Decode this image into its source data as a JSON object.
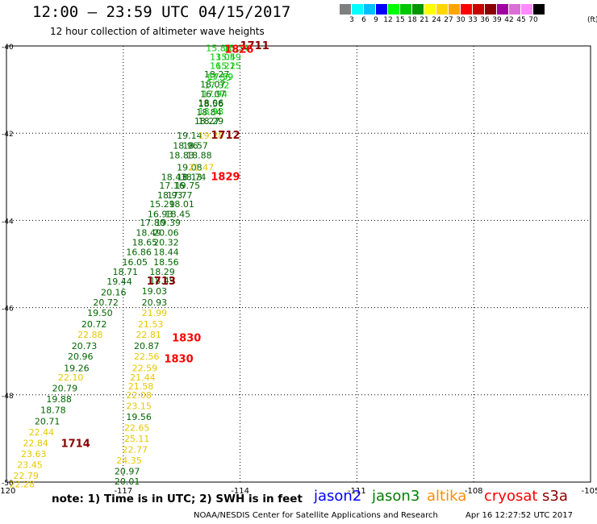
{
  "header": {
    "title": "12:00 – 23:59 UTC 04/15/2017",
    "subtitle": "12 hour collection of altimeter wave heights"
  },
  "scale": {
    "labels": [
      "3",
      "6",
      "9",
      "12",
      "15",
      "18",
      "21",
      "24",
      "27",
      "30",
      "33",
      "36",
      "39",
      "42",
      "45",
      "70"
    ],
    "unit": "(ft)",
    "colors": [
      "#7f7f7f",
      "#00ffff",
      "#00bfff",
      "#0000ff",
      "#00ff00",
      "#00c800",
      "#009600",
      "#ffff00",
      "#ffd700",
      "#ffa500",
      "#ff0000",
      "#c80000",
      "#8b0000",
      "#a000a0",
      "#da70d6",
      "#ff8cff",
      "#000000"
    ]
  },
  "footer": {
    "note": "note:  1) Time is in UTC;  2) SWH is in feet",
    "credit": "NOAA/NESDIS Center for Satellite Applications and Research",
    "timestamp": "Apr 16 12:27:52 UTC 2017"
  },
  "legend": [
    {
      "name": "jason2",
      "color": "#0000ff"
    },
    {
      "name": "jason3",
      "color": "#008000"
    },
    {
      "name": "altika",
      "color": "#ff8c00"
    },
    {
      "name": "cryosat",
      "color": "#ff0000"
    },
    {
      "name": "s3a",
      "color": "#8b0000"
    }
  ],
  "chart_data": {
    "type": "scatter",
    "title": "",
    "xlabel": "",
    "ylabel": "",
    "xlim": [
      -120,
      -105
    ],
    "ylim": [
      -50,
      -40
    ],
    "x_ticks": [
      -120,
      -117,
      -114,
      -111,
      -108,
      -105
    ],
    "x_tick_labels": [
      "-120",
      "-117",
      "-114",
      "-111",
      "-108",
      "-105"
    ],
    "y_ticks": [
      -40,
      -42,
      -44,
      -46,
      -48,
      -50
    ],
    "y_tick_labels": [
      "-40",
      "-42",
      "-44",
      "-46",
      "-48",
      "-50"
    ],
    "grid": true,
    "colors": {
      "green": "#006400",
      "light_green": "#00c800",
      "yellow": "#e6c800",
      "red": "#ff0000",
      "dark_red": "#8b0000"
    },
    "points": [
      {
        "x": -114.55,
        "y": -40.05,
        "text": "15.88",
        "color": "light_green"
      },
      {
        "x": -114.1,
        "y": -40.05,
        "text": "15.34",
        "color": "light_green"
      },
      {
        "x": -114.45,
        "y": -40.25,
        "text": "13.05",
        "color": "light_green"
      },
      {
        "x": -114.3,
        "y": -40.25,
        "text": "15.49",
        "color": "light_green"
      },
      {
        "x": -114.45,
        "y": -40.45,
        "text": "16.21",
        "color": "light_green"
      },
      {
        "x": -114.3,
        "y": -40.45,
        "text": "15.25",
        "color": "light_green"
      },
      {
        "x": -114.6,
        "y": -40.65,
        "text": "18.27",
        "color": "green"
      },
      {
        "x": -114.55,
        "y": -40.72,
        "text": "17.55",
        "color": "light_green"
      },
      {
        "x": -114.5,
        "y": -40.7,
        "text": "17.59",
        "color": "light_green"
      },
      {
        "x": -114.6,
        "y": -40.9,
        "text": "17.32",
        "color": "light_green"
      },
      {
        "x": -114.7,
        "y": -40.88,
        "text": "18.07",
        "color": "green"
      },
      {
        "x": -114.65,
        "y": -41.1,
        "text": "17.94",
        "color": "light_green"
      },
      {
        "x": -114.7,
        "y": -41.1,
        "text": "16.07",
        "color": "green"
      },
      {
        "x": -114.75,
        "y": -41.3,
        "text": "18.06",
        "color": "green"
      },
      {
        "x": -114.75,
        "y": -41.32,
        "text": "18.56",
        "color": "green"
      },
      {
        "x": -114.8,
        "y": -41.52,
        "text": "18.84",
        "color": "green"
      },
      {
        "x": -114.75,
        "y": -41.5,
        "text": "18.93",
        "color": "light_green"
      },
      {
        "x": -114.85,
        "y": -41.72,
        "text": "18.27",
        "color": "green"
      },
      {
        "x": -114.75,
        "y": -41.72,
        "text": "18.29",
        "color": "green"
      },
      {
        "x": -115.3,
        "y": -42.05,
        "text": "19.14",
        "color": "green"
      },
      {
        "x": -114.75,
        "y": -42.05,
        "text": "19.28",
        "color": "yellow"
      },
      {
        "x": -115.4,
        "y": -42.28,
        "text": "18.96",
        "color": "green"
      },
      {
        "x": -115.15,
        "y": -42.28,
        "text": "18.57",
        "color": "green"
      },
      {
        "x": -115.5,
        "y": -42.5,
        "text": "18.83",
        "color": "green"
      },
      {
        "x": -115.05,
        "y": -42.5,
        "text": "18.88",
        "color": "green"
      },
      {
        "x": -115.3,
        "y": -42.78,
        "text": "19.08",
        "color": "green"
      },
      {
        "x": -115.0,
        "y": -42.78,
        "text": "21.47",
        "color": "yellow"
      },
      {
        "x": -115.7,
        "y": -43.0,
        "text": "18.43",
        "color": "green"
      },
      {
        "x": -115.3,
        "y": -43.0,
        "text": "18.13",
        "color": "green"
      },
      {
        "x": -115.2,
        "y": -43.0,
        "text": "18.74",
        "color": "green"
      },
      {
        "x": -115.75,
        "y": -43.2,
        "text": "17.16",
        "color": "green"
      },
      {
        "x": -115.35,
        "y": -43.2,
        "text": "19.75",
        "color": "green"
      },
      {
        "x": -115.8,
        "y": -43.42,
        "text": "18.93",
        "color": "green"
      },
      {
        "x": -115.55,
        "y": -43.42,
        "text": "17.77",
        "color": "green"
      },
      {
        "x": -116.0,
        "y": -43.62,
        "text": "15.29",
        "color": "green"
      },
      {
        "x": -115.5,
        "y": -43.62,
        "text": "18.01",
        "color": "green"
      },
      {
        "x": -116.05,
        "y": -43.85,
        "text": "16.93",
        "color": "green"
      },
      {
        "x": -115.6,
        "y": -43.85,
        "text": "18.45",
        "color": "green"
      },
      {
        "x": -116.25,
        "y": -44.05,
        "text": "17.80",
        "color": "green"
      },
      {
        "x": -115.85,
        "y": -44.05,
        "text": "19.39",
        "color": "green"
      },
      {
        "x": -116.35,
        "y": -44.28,
        "text": "18.49",
        "color": "green"
      },
      {
        "x": -115.9,
        "y": -44.28,
        "text": "20.06",
        "color": "green"
      },
      {
        "x": -116.45,
        "y": -44.5,
        "text": "18.65",
        "color": "green"
      },
      {
        "x": -115.9,
        "y": -44.5,
        "text": "20.32",
        "color": "green"
      },
      {
        "x": -116.6,
        "y": -44.72,
        "text": "16.86",
        "color": "green"
      },
      {
        "x": -115.9,
        "y": -44.72,
        "text": "18.44",
        "color": "green"
      },
      {
        "x": -116.7,
        "y": -44.95,
        "text": "16.05",
        "color": "green"
      },
      {
        "x": -115.9,
        "y": -44.95,
        "text": "18.56",
        "color": "green"
      },
      {
        "x": -116.95,
        "y": -45.18,
        "text": "18.71",
        "color": "green"
      },
      {
        "x": -116.0,
        "y": -45.18,
        "text": "18.29",
        "color": "green"
      },
      {
        "x": -117.1,
        "y": -45.4,
        "text": "19.44",
        "color": "green"
      },
      {
        "x": -116.0,
        "y": -45.38,
        "text": "18.49",
        "color": "green"
      },
      {
        "x": -117.25,
        "y": -45.65,
        "text": "20.16",
        "color": "green"
      },
      {
        "x": -116.2,
        "y": -45.62,
        "text": "19.03",
        "color": "green"
      },
      {
        "x": -117.45,
        "y": -45.88,
        "text": "20.72",
        "color": "green"
      },
      {
        "x": -116.2,
        "y": -45.88,
        "text": "20.93",
        "color": "green"
      },
      {
        "x": -117.6,
        "y": -46.12,
        "text": "19.50",
        "color": "green"
      },
      {
        "x": -116.2,
        "y": -46.12,
        "text": "21.99",
        "color": "yellow"
      },
      {
        "x": -117.75,
        "y": -46.38,
        "text": "20.72",
        "color": "green"
      },
      {
        "x": -116.3,
        "y": -46.38,
        "text": "21.53",
        "color": "yellow"
      },
      {
        "x": -117.85,
        "y": -46.62,
        "text": "22.88",
        "color": "yellow"
      },
      {
        "x": -116.35,
        "y": -46.62,
        "text": "22.81",
        "color": "yellow"
      },
      {
        "x": -118.0,
        "y": -46.88,
        "text": "20.73",
        "color": "green"
      },
      {
        "x": -116.4,
        "y": -46.88,
        "text": "20.87",
        "color": "green"
      },
      {
        "x": -118.1,
        "y": -47.12,
        "text": "20.96",
        "color": "green"
      },
      {
        "x": -116.4,
        "y": -47.12,
        "text": "22.56",
        "color": "yellow"
      },
      {
        "x": -118.2,
        "y": -47.38,
        "text": "19.26",
        "color": "green"
      },
      {
        "x": -116.45,
        "y": -47.38,
        "text": "22.59",
        "color": "yellow"
      },
      {
        "x": -118.35,
        "y": -47.6,
        "text": "22.10",
        "color": "yellow"
      },
      {
        "x": -116.5,
        "y": -47.6,
        "text": "21.44",
        "color": "yellow"
      },
      {
        "x": -118.5,
        "y": -47.85,
        "text": "20.79",
        "color": "green"
      },
      {
        "x": -116.55,
        "y": -47.8,
        "text": "21.58",
        "color": "yellow"
      },
      {
        "x": -118.65,
        "y": -48.1,
        "text": "19.88",
        "color": "green"
      },
      {
        "x": -116.6,
        "y": -48.0,
        "text": "22.08",
        "color": "yellow"
      },
      {
        "x": -118.8,
        "y": -48.35,
        "text": "18.78",
        "color": "green"
      },
      {
        "x": -116.6,
        "y": -48.25,
        "text": "23.15",
        "color": "yellow"
      },
      {
        "x": -118.95,
        "y": -48.6,
        "text": "20.71",
        "color": "green"
      },
      {
        "x": -116.6,
        "y": -48.5,
        "text": "19.56",
        "color": "green"
      },
      {
        "x": -119.1,
        "y": -48.85,
        "text": "22.44",
        "color": "yellow"
      },
      {
        "x": -116.65,
        "y": -48.75,
        "text": "22.65",
        "color": "yellow"
      },
      {
        "x": -119.25,
        "y": -49.1,
        "text": "22.84",
        "color": "yellow"
      },
      {
        "x": -116.65,
        "y": -49.0,
        "text": "25.11",
        "color": "yellow"
      },
      {
        "x": -119.3,
        "y": -49.35,
        "text": "23.63",
        "color": "yellow"
      },
      {
        "x": -116.7,
        "y": -49.25,
        "text": "22.77",
        "color": "yellow"
      },
      {
        "x": -119.4,
        "y": -49.6,
        "text": "23.45",
        "color": "yellow"
      },
      {
        "x": -116.85,
        "y": -49.5,
        "text": "24.35",
        "color": "yellow"
      },
      {
        "x": -119.5,
        "y": -49.85,
        "text": "22.79",
        "color": "yellow"
      },
      {
        "x": -116.9,
        "y": -49.75,
        "text": "20.97",
        "color": "green"
      },
      {
        "x": -119.6,
        "y": -50.05,
        "text": "22.28",
        "color": "yellow"
      },
      {
        "x": -116.9,
        "y": -49.98,
        "text": "20.01",
        "color": "green"
      }
    ],
    "time_labels": [
      {
        "x": -114.0,
        "y": -40.0,
        "text": "1711",
        "color": "dark_red"
      },
      {
        "x": -114.4,
        "y": -40.08,
        "text": "1826",
        "color": "red"
      },
      {
        "x": -114.75,
        "y": -42.05,
        "text": "1712",
        "color": "dark_red"
      },
      {
        "x": -114.75,
        "y": -43.0,
        "text": "1829",
        "color": "red"
      },
      {
        "x": -116.4,
        "y": -45.4,
        "text": "1713",
        "color": "dark_red"
      },
      {
        "x": -115.75,
        "y": -46.7,
        "text": "1830",
        "color": "red"
      },
      {
        "x": -115.95,
        "y": -47.18,
        "text": "1830",
        "color": "red"
      },
      {
        "x": -118.6,
        "y": -49.12,
        "text": "1714",
        "color": "dark_red"
      }
    ]
  }
}
